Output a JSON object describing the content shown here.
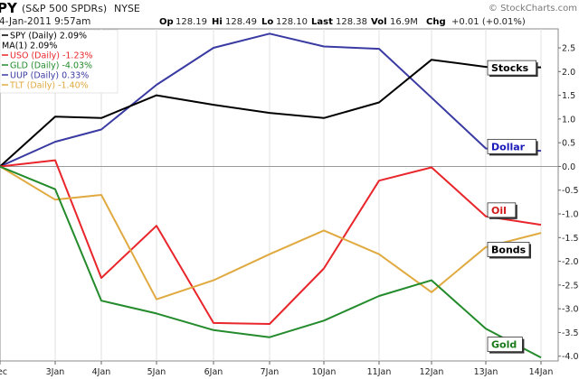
{
  "header": {
    "symbol": "PY",
    "name": "(S&P 500 SPDRs)",
    "exchange": "NYSE",
    "watermark": "© StockCharts.com",
    "date": "4-Jan-2011 9:57am",
    "op_label": "Op",
    "op": "128.19",
    "hi_label": "Hi",
    "hi": "128.49",
    "lo_label": "Lo",
    "lo": "128.10",
    "last_label": "Last",
    "last": "128.38",
    "vol_label": "Vol",
    "vol": "16.9M",
    "chg_label": "Chg",
    "chg": "+0.01 (+0.01%)"
  },
  "legend": [
    {
      "key": "spy",
      "text": "SPY (Daily) 2.09%",
      "color": "#000000"
    },
    {
      "key": "ma",
      "text": "MA(1) 2.09%",
      "color": "#000000"
    },
    {
      "key": "uso",
      "text": "USO (Daily) -1.23%",
      "color": "#e8262b"
    },
    {
      "key": "gld",
      "text": "GLD (Daily) -4.03%",
      "color": "#238b2b"
    },
    {
      "key": "uup",
      "text": "UUP (Daily) 0.33%",
      "color": "#3a3aa3"
    },
    {
      "key": "tlt",
      "text": "TLT (Daily) -1.40%",
      "color": "#e0aa40"
    }
  ],
  "chart_data": {
    "type": "line",
    "x": [
      "ec",
      "3Jan",
      "4Jan",
      "5Jan",
      "6Jan",
      "7Jan",
      "10Jan",
      "11Jan",
      "12Jan",
      "13Jan",
      "14Jan"
    ],
    "x_tick_labels": [
      "ec",
      "3Jan",
      "4Jan",
      "5Jan",
      "6Jan",
      "7Jan",
      "10Jan",
      "11Jan",
      "12Jan",
      "13Jan",
      "14Jan"
    ],
    "ylim": [
      -4.1,
      2.9
    ],
    "y_ticks": [
      2.5,
      2.0,
      1.5,
      1.0,
      0.5,
      0.0,
      -0.5,
      -1.0,
      -1.5,
      -2.0,
      -2.5,
      -3.0,
      -3.5,
      -4.0
    ],
    "y_tick_labels": [
      "2.5",
      "2.0",
      "1.5",
      "1.0",
      "0.5",
      "0.0",
      "-0.5",
      "-1.0",
      "-1.5",
      "-2.0",
      "-2.5",
      "-3.0",
      "-3.5",
      "-4.0"
    ],
    "grid": "vertical",
    "zero_line": true,
    "series": [
      {
        "key": "uup",
        "color": "#3a3aa3",
        "values": [
          0.0,
          0.52,
          0.78,
          1.72,
          2.5,
          2.8,
          2.53,
          2.48,
          1.45,
          0.38,
          0.33
        ]
      },
      {
        "key": "spy",
        "color": "#000000",
        "values": [
          0.0,
          1.05,
          1.02,
          1.5,
          1.3,
          1.13,
          1.02,
          1.35,
          2.25,
          2.1,
          2.09
        ]
      },
      {
        "key": "uso",
        "color": "#e8262b",
        "values": [
          0.0,
          0.13,
          -2.35,
          -1.25,
          -3.3,
          -3.32,
          -2.15,
          -0.3,
          -0.02,
          -1.05,
          -1.23
        ]
      },
      {
        "key": "tlt",
        "color": "#e0aa40",
        "values": [
          0.0,
          -0.7,
          -0.6,
          -2.8,
          -2.4,
          -1.85,
          -1.35,
          -1.85,
          -2.65,
          -1.7,
          -1.4
        ]
      },
      {
        "key": "gld",
        "color": "#238b2b",
        "values": [
          0.0,
          -0.48,
          -2.83,
          -3.1,
          -3.45,
          -3.6,
          -3.25,
          -2.73,
          -2.4,
          -3.42,
          -4.03
        ]
      }
    ],
    "annotations": [
      {
        "key": "stocks",
        "text": "Stocks",
        "color": "#000000",
        "x": "13Jan",
        "y": 2.08
      },
      {
        "key": "dollar",
        "text": "Dollar",
        "color": "#1a1ab8",
        "x": "13Jan",
        "y": 0.42
      },
      {
        "key": "oil",
        "text": "Oil",
        "color": "#d01818",
        "x": "13Jan",
        "y": -0.92
      },
      {
        "key": "bonds",
        "text": "Bonds",
        "color": "#000000",
        "x": "13Jan",
        "y": -1.75
      },
      {
        "key": "gold",
        "text": "Gold",
        "color": "#1a7a1a",
        "x": "13Jan",
        "y": -3.75
      }
    ]
  }
}
